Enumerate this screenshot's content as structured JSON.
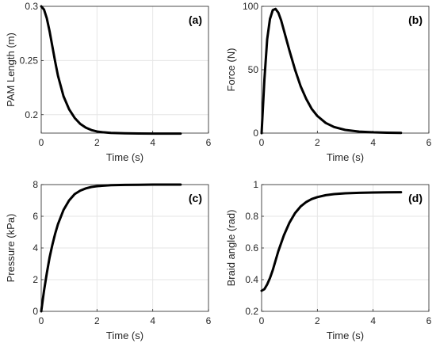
{
  "chart_data": [
    {
      "type": "line",
      "panel_label": "(a)",
      "xlabel": "Time (s)",
      "ylabel": "PAM Length (m)",
      "xlim": [
        0,
        6
      ],
      "ylim": [
        0.183,
        0.3
      ],
      "xticks": [
        0,
        2,
        4,
        6
      ],
      "yticks": [
        0.2,
        0.25,
        0.3
      ],
      "xtick_labels": [
        "0",
        "2",
        "4",
        "6"
      ],
      "ytick_labels": [
        "0.2",
        "0.25",
        "0.3"
      ],
      "grid": true,
      "series": [
        {
          "color": "#000000",
          "x": [
            0,
            0.1,
            0.2,
            0.3,
            0.4,
            0.5,
            0.6,
            0.8,
            1.0,
            1.2,
            1.4,
            1.6,
            1.8,
            2.0,
            2.2,
            2.5,
            3.0,
            3.5,
            4.0,
            4.5,
            5.0
          ],
          "y": [
            0.3,
            0.297,
            0.289,
            0.277,
            0.263,
            0.249,
            0.236,
            0.217,
            0.205,
            0.197,
            0.1915,
            0.188,
            0.1858,
            0.1845,
            0.1838,
            0.1832,
            0.1828,
            0.1826,
            0.1825,
            0.1825,
            0.1825
          ]
        }
      ]
    },
    {
      "type": "line",
      "panel_label": "(b)",
      "xlabel": "Time (s)",
      "ylabel": "Force (N)",
      "xlim": [
        0,
        6
      ],
      "ylim": [
        0,
        100
      ],
      "xticks": [
        0,
        2,
        4,
        6
      ],
      "yticks": [
        0,
        50,
        100
      ],
      "xtick_labels": [
        "0",
        "2",
        "4",
        "6"
      ],
      "ytick_labels": [
        "0",
        "50",
        "100"
      ],
      "grid": true,
      "series": [
        {
          "color": "#000000",
          "x": [
            0,
            0.1,
            0.2,
            0.3,
            0.4,
            0.5,
            0.6,
            0.7,
            0.8,
            1.0,
            1.2,
            1.4,
            1.6,
            1.8,
            2.0,
            2.3,
            2.6,
            3.0,
            3.5,
            4.0,
            4.5,
            5.0
          ],
          "y": [
            0,
            42,
            74,
            90,
            97,
            98,
            95,
            89,
            81,
            65,
            50,
            37,
            27,
            19,
            13.5,
            8,
            4.8,
            2.5,
            1.2,
            0.6,
            0.3,
            0.15
          ]
        }
      ]
    },
    {
      "type": "line",
      "panel_label": "(c)",
      "xlabel": "Time (s)",
      "ylabel": "Pressure (kPa)",
      "xlim": [
        0,
        6
      ],
      "ylim": [
        0,
        8
      ],
      "xticks": [
        0,
        2,
        4,
        6
      ],
      "yticks": [
        0,
        2,
        4,
        6,
        8
      ],
      "xtick_labels": [
        "0",
        "2",
        "4",
        "6"
      ],
      "ytick_labels": [
        "0",
        "2",
        "4",
        "6",
        "8"
      ],
      "grid": true,
      "series": [
        {
          "color": "#000000",
          "x": [
            0,
            0.1,
            0.2,
            0.3,
            0.4,
            0.5,
            0.6,
            0.8,
            1.0,
            1.2,
            1.4,
            1.6,
            1.8,
            2.0,
            2.5,
            3.0,
            3.5,
            4.0,
            4.5,
            5.0
          ],
          "y": [
            0,
            1.3,
            2.4,
            3.4,
            4.2,
            4.9,
            5.5,
            6.4,
            7.0,
            7.4,
            7.62,
            7.76,
            7.85,
            7.9,
            7.96,
            7.98,
            7.99,
            8.0,
            8.0,
            8.0
          ]
        }
      ]
    },
    {
      "type": "line",
      "panel_label": "(d)",
      "xlabel": "Time (s)",
      "ylabel": "Braid angle (rad)",
      "xlim": [
        0,
        6
      ],
      "ylim": [
        0.2,
        1.0
      ],
      "xticks": [
        0,
        2,
        4,
        6
      ],
      "yticks": [
        0.2,
        0.4,
        0.6,
        0.8,
        1.0
      ],
      "xtick_labels": [
        "0",
        "2",
        "4",
        "6"
      ],
      "ytick_labels": [
        "0.2",
        "0.4",
        "0.6",
        "0.8",
        "1"
      ],
      "grid": true,
      "series": [
        {
          "color": "#000000",
          "x": [
            0,
            0.1,
            0.2,
            0.3,
            0.4,
            0.5,
            0.6,
            0.8,
            1.0,
            1.2,
            1.4,
            1.6,
            1.8,
            2.0,
            2.3,
            2.6,
            3.0,
            3.5,
            4.0,
            4.5,
            5.0
          ],
          "y": [
            0.33,
            0.34,
            0.37,
            0.41,
            0.46,
            0.52,
            0.58,
            0.68,
            0.76,
            0.82,
            0.862,
            0.89,
            0.909,
            0.921,
            0.933,
            0.94,
            0.945,
            0.948,
            0.95,
            0.951,
            0.952
          ]
        }
      ]
    }
  ]
}
